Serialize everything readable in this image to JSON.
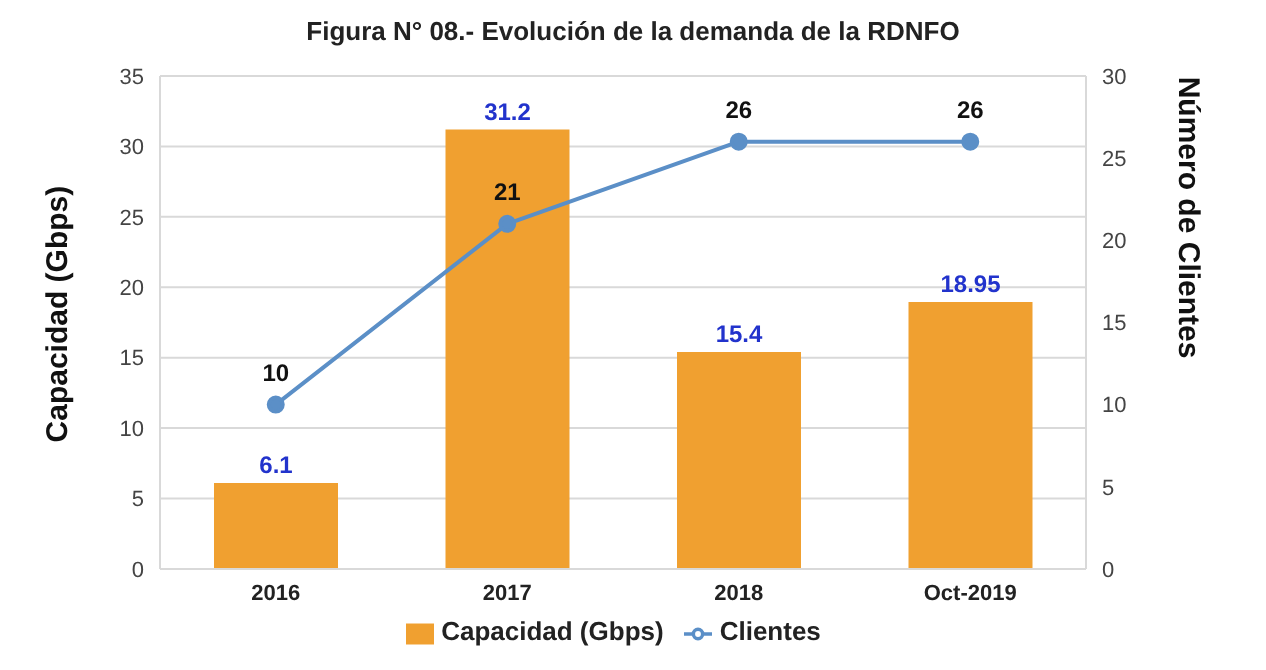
{
  "chart_data": {
    "type": "bar",
    "title": "Figura N° 08.- Evolución de la demanda de la RDNFO",
    "categories": [
      "2016",
      "2017",
      "2018",
      "Oct-2019"
    ],
    "series": [
      {
        "name": "Capacidad (Gbps)",
        "color": "#f0a030",
        "values": [
          6.1,
          31.2,
          15.4,
          18.95
        ]
      },
      {
        "name": "Clientes",
        "type": "line",
        "axis": "y2",
        "color": "#5b8fc7",
        "values": [
          10,
          21,
          26,
          26
        ]
      }
    ],
    "ylabel": "Capacidad (Gbps)",
    "y2label": "Número de Clientes",
    "ylim": [
      0,
      35
    ],
    "yticks": [
      0,
      5,
      10,
      15,
      20,
      25,
      30,
      35
    ],
    "y2lim": [
      0,
      30
    ],
    "y2ticks": [
      0,
      5,
      10,
      15,
      20,
      25,
      30
    ],
    "grid": "y",
    "legend": "bottom",
    "data_labels": true,
    "marker": "circle",
    "line_style": "solid"
  }
}
